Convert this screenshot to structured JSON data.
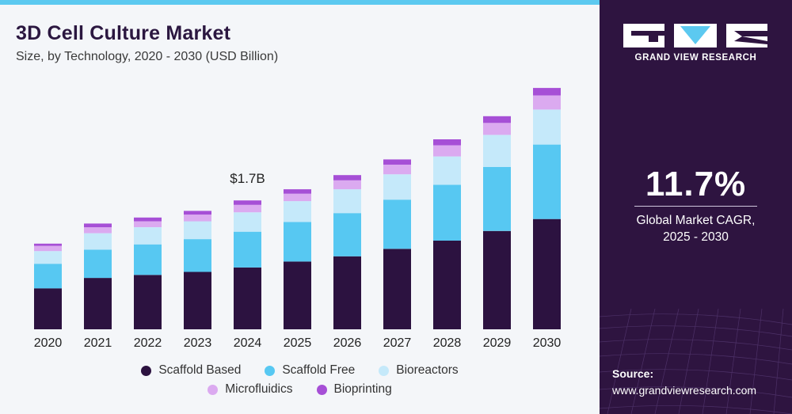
{
  "header": {
    "title": "3D Cell Culture Market",
    "subtitle": "Size, by Technology, 2020 - 2030 (USD Billion)"
  },
  "sidebar": {
    "brand": "GRAND VIEW RESEARCH",
    "cagr_value": "11.7%",
    "cagr_label_line1": "Global Market CAGR,",
    "cagr_label_line2": "2025 - 2030",
    "source_label": "Source:",
    "source_url": "www.grandviewresearch.com"
  },
  "colors": {
    "sidebar_bg": "#2e1440",
    "accent": "#5cc9f0",
    "title": "#2b1740"
  },
  "chart_data": {
    "type": "bar",
    "stacked": true,
    "categories": [
      "2020",
      "2021",
      "2022",
      "2023",
      "2024",
      "2025",
      "2026",
      "2027",
      "2028",
      "2029",
      "2030"
    ],
    "series": [
      {
        "name": "Scaffold Based",
        "color": "#2c1240",
        "values": [
          0.55,
          0.69,
          0.73,
          0.77,
          0.83,
          0.91,
          0.98,
          1.08,
          1.19,
          1.32,
          1.48
        ]
      },
      {
        "name": "Scaffold Free",
        "color": "#57c8f2",
        "values": [
          0.33,
          0.38,
          0.41,
          0.44,
          0.48,
          0.53,
          0.58,
          0.66,
          0.75,
          0.86,
          1.0
        ]
      },
      {
        "name": "Bioreactors",
        "color": "#c5e9fa",
        "values": [
          0.17,
          0.22,
          0.23,
          0.24,
          0.26,
          0.28,
          0.32,
          0.34,
          0.38,
          0.43,
          0.47
        ]
      },
      {
        "name": "Microfluidics",
        "color": "#dbaaf0",
        "values": [
          0.07,
          0.08,
          0.08,
          0.09,
          0.1,
          0.1,
          0.12,
          0.13,
          0.15,
          0.16,
          0.19
        ]
      },
      {
        "name": "Bioprinting",
        "color": "#a64fd6",
        "values": [
          0.03,
          0.05,
          0.05,
          0.05,
          0.06,
          0.06,
          0.07,
          0.07,
          0.08,
          0.09,
          0.1
        ]
      }
    ],
    "annotations": [
      {
        "category": "2024",
        "text": "$1.7B"
      }
    ],
    "ylim": [
      0,
      3.4
    ],
    "grid": false,
    "legend": "bottom",
    "title": "",
    "xlabel": "",
    "ylabel": ""
  }
}
